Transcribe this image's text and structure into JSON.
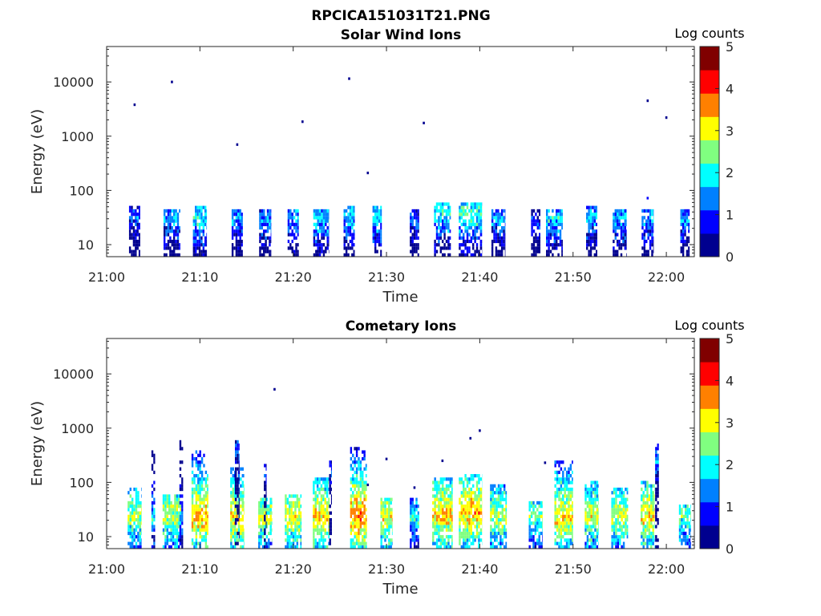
{
  "figure_title": "RPCICA151031T21.PNG",
  "colormap": [
    "#00008f",
    "#0000ff",
    "#0080ff",
    "#00ffff",
    "#80ff80",
    "#ffff00",
    "#ff8000",
    "#ff0000",
    "#800000"
  ],
  "chart_data": [
    {
      "type": "heatmap",
      "title": "Solar Wind Ions",
      "xlabel": "Time",
      "ylabel": "Energy (eV)",
      "yscale": "log",
      "xlim": [
        "21:00",
        "22:03"
      ],
      "ylim": [
        6,
        45000
      ],
      "xticks": [
        "21:00",
        "21:10",
        "21:20",
        "21:30",
        "21:40",
        "21:50",
        "22:00"
      ],
      "yticks": [
        "10",
        "100",
        "1000",
        "10000"
      ],
      "colorbar": {
        "label": "Log counts",
        "range": [
          0,
          5
        ],
        "ticks": [
          "0",
          "1",
          "2",
          "3",
          "4",
          "5"
        ]
      },
      "blocks": [
        {
          "t": "21:03",
          "w": 1.2,
          "peak": 30,
          "i": 1.2
        },
        {
          "t": "21:07",
          "w": 1.8,
          "peak": 28,
          "i": 1.5
        },
        {
          "t": "21:10",
          "w": 1.5,
          "peak": 30,
          "i": 2.0
        },
        {
          "t": "21:14",
          "w": 1.2,
          "peak": 28,
          "i": 1.5
        },
        {
          "t": "21:17",
          "w": 1.3,
          "peak": 25,
          "i": 1.4
        },
        {
          "t": "21:20",
          "w": 1.2,
          "peak": 28,
          "i": 1.6
        },
        {
          "t": "21:23",
          "w": 1.7,
          "peak": 28,
          "i": 1.8
        },
        {
          "t": "21:26",
          "w": 1.2,
          "peak": 30,
          "i": 1.8
        },
        {
          "t": "21:29",
          "w": 1.0,
          "peak": 30,
          "i": 1.8
        },
        {
          "t": "21:33",
          "w": 1.0,
          "peak": 25,
          "i": 1.2
        },
        {
          "t": "21:36",
          "w": 1.8,
          "peak": 35,
          "i": 2.0
        },
        {
          "t": "21:39",
          "w": 2.5,
          "peak": 35,
          "i": 2.2
        },
        {
          "t": "21:42",
          "w": 1.5,
          "peak": 28,
          "i": 1.5
        },
        {
          "t": "21:46",
          "w": 1.0,
          "peak": 25,
          "i": 1.0
        },
        {
          "t": "21:48",
          "w": 1.8,
          "peak": 28,
          "i": 1.8
        },
        {
          "t": "21:52",
          "w": 1.2,
          "peak": 30,
          "i": 1.6
        },
        {
          "t": "21:55",
          "w": 1.5,
          "peak": 28,
          "i": 1.7
        },
        {
          "t": "21:58",
          "w": 1.3,
          "peak": 28,
          "i": 1.6
        },
        {
          "t": "22:02",
          "w": 1.0,
          "peak": 25,
          "i": 1.4
        }
      ],
      "isolated": [
        {
          "t": "21:03",
          "e": 3800,
          "c": 0.3
        },
        {
          "t": "21:07",
          "e": 10000,
          "c": 0.3
        },
        {
          "t": "21:14",
          "e": 700,
          "c": 0.3
        },
        {
          "t": "21:21",
          "e": 1850,
          "c": 0.3
        },
        {
          "t": "21:26",
          "e": 11500,
          "c": 0.3
        },
        {
          "t": "21:28",
          "e": 210,
          "c": 0.3
        },
        {
          "t": "21:34",
          "e": 1750,
          "c": 0.3
        },
        {
          "t": "21:58",
          "e": 4500,
          "c": 0.3
        },
        {
          "t": "22:00",
          "e": 2200,
          "c": 0.3
        },
        {
          "t": "21:58",
          "e": 72,
          "c": 0.8
        }
      ]
    },
    {
      "type": "heatmap",
      "title": "Cometary Ions",
      "xlabel": "Time",
      "ylabel": "Energy (eV)",
      "yscale": "log",
      "xlim": [
        "21:00",
        "22:03"
      ],
      "ylim": [
        6,
        45000
      ],
      "xticks": [
        "21:00",
        "21:10",
        "21:20",
        "21:30",
        "21:40",
        "21:50",
        "22:00"
      ],
      "yticks": [
        "10",
        "100",
        "1000",
        "10000"
      ],
      "colorbar": {
        "label": "Log counts",
        "range": [
          0,
          5
        ],
        "ticks": [
          "0",
          "1",
          "2",
          "3",
          "4",
          "5"
        ]
      },
      "blocks": [
        {
          "t": "21:03",
          "w": 1.5,
          "peak": 22,
          "i": 2.6,
          "tail": 80
        },
        {
          "t": "21:05",
          "w": 0.4,
          "peak": 20,
          "i": 1.8,
          "tail": 380
        },
        {
          "t": "21:07",
          "w": 2.0,
          "peak": 22,
          "i": 2.8,
          "tail": 60
        },
        {
          "t": "21:08",
          "w": 0.4,
          "peak": 20,
          "i": 1.6,
          "tail": 600
        },
        {
          "t": "21:10",
          "w": 1.8,
          "peak": 22,
          "i": 3.4,
          "tail": 350
        },
        {
          "t": "21:14",
          "w": 1.5,
          "peak": 20,
          "i": 3.2,
          "tail": 180
        },
        {
          "t": "21:14",
          "w": 0.5,
          "peak": 400,
          "i": 1.2,
          "tail": 550
        },
        {
          "t": "21:17",
          "w": 1.5,
          "peak": 22,
          "i": 2.8,
          "tail": 50
        },
        {
          "t": "21:17",
          "w": 0.3,
          "peak": 160,
          "i": 1.0,
          "tail": 200
        },
        {
          "t": "21:20",
          "w": 1.8,
          "peak": 22,
          "i": 3.0,
          "tail": 60
        },
        {
          "t": "21:23",
          "w": 1.8,
          "peak": 22,
          "i": 3.2,
          "tail": 120
        },
        {
          "t": "21:24",
          "w": 0.3,
          "peak": 150,
          "i": 1.0,
          "tail": 250
        },
        {
          "t": "21:27",
          "w": 1.8,
          "peak": 22,
          "i": 3.6,
          "tail": 420
        },
        {
          "t": "21:30",
          "w": 1.3,
          "peak": 22,
          "i": 3.0,
          "tail": 50
        },
        {
          "t": "21:33",
          "w": 1.0,
          "peak": 20,
          "i": 2.0,
          "tail": 50
        },
        {
          "t": "21:36",
          "w": 2.2,
          "peak": 24,
          "i": 3.2,
          "tail": 110
        },
        {
          "t": "21:39",
          "w": 2.5,
          "peak": 26,
          "i": 3.4,
          "tail": 140
        },
        {
          "t": "21:42",
          "w": 1.8,
          "peak": 22,
          "i": 2.8,
          "tail": 90
        },
        {
          "t": "21:46",
          "w": 1.5,
          "peak": 22,
          "i": 2.4,
          "tail": 40
        },
        {
          "t": "21:49",
          "w": 2.0,
          "peak": 22,
          "i": 3.2,
          "tail": 240
        },
        {
          "t": "21:52",
          "w": 1.5,
          "peak": 22,
          "i": 2.8,
          "tail": 100
        },
        {
          "t": "21:55",
          "w": 1.8,
          "peak": 22,
          "i": 2.8,
          "tail": 70
        },
        {
          "t": "21:58",
          "w": 1.5,
          "peak": 22,
          "i": 3.2,
          "tail": 100
        },
        {
          "t": "21:59",
          "w": 0.4,
          "peak": 200,
          "i": 1.4,
          "tail": 500
        },
        {
          "t": "22:02",
          "w": 1.3,
          "peak": 22,
          "i": 2.4,
          "tail": 35
        }
      ],
      "isolated": [
        {
          "t": "21:18",
          "e": 5200,
          "c": 0.3
        },
        {
          "t": "21:40",
          "e": 900,
          "c": 0.3
        },
        {
          "t": "21:39",
          "e": 650,
          "c": 0.3
        },
        {
          "t": "21:30",
          "e": 270,
          "c": 0.3
        },
        {
          "t": "21:36",
          "e": 250,
          "c": 0.3
        },
        {
          "t": "21:47",
          "e": 230,
          "c": 0.3
        },
        {
          "t": "21:28",
          "e": 90,
          "c": 0.5
        },
        {
          "t": "21:33",
          "e": 80,
          "c": 0.5
        }
      ]
    }
  ]
}
